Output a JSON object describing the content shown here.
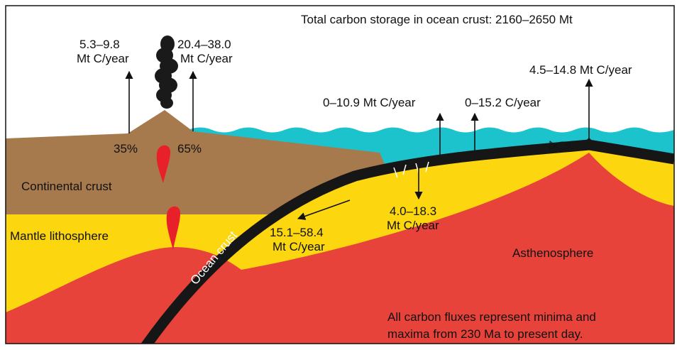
{
  "title": "Total carbon storage in ocean crust: 2160–2650 Mt",
  "fluxes": {
    "volcanic_left": [
      "5.3–9.8",
      "Mt C/year"
    ],
    "volcanic_right": [
      "20.4–38.0",
      "Mt C/year"
    ],
    "ridge": "4.5–14.8 Mt C/year",
    "ocean_up": "0–10.9 Mt C/year",
    "ocean_down": "0–15.2 C/year",
    "share_left": "35%",
    "share_right": "65%",
    "subduction": [
      "15.1–58.4",
      "Mt C/year"
    ],
    "mantle_down": [
      "4.0–18.3",
      "Mt C/year"
    ]
  },
  "layers": {
    "continental": "Continental crust",
    "mantle": "Mantle lithosphere",
    "ocean_crust": "Ocean crust",
    "asthenosphere": "Asthenosphere"
  },
  "note": [
    "All carbon fluxes represent minima and",
    "maxima from 230 Ma to present day."
  ]
}
